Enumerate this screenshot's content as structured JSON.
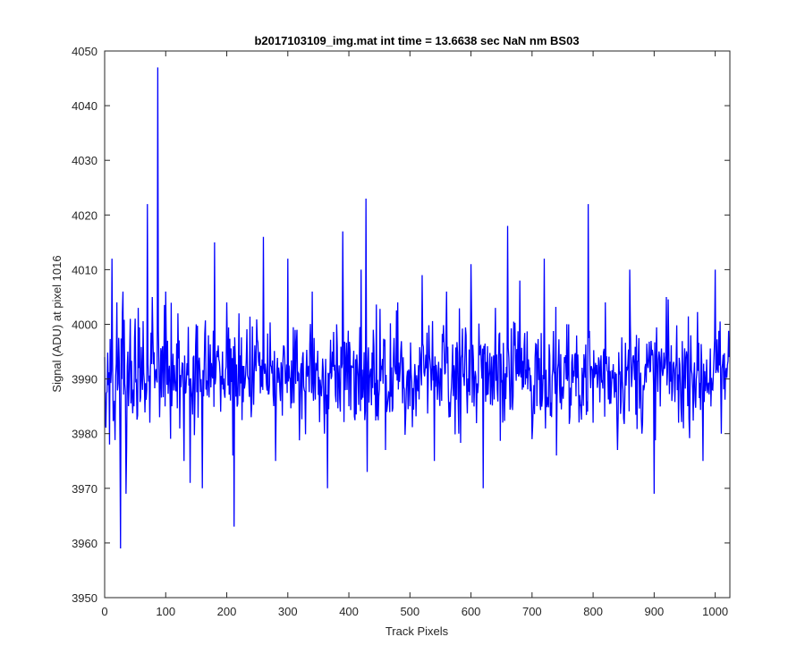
{
  "chart_data": {
    "type": "line",
    "title": "b2017103109_img.mat int time = 13.6638 sec  NaN nm BS03",
    "xlabel": "Track Pixels",
    "ylabel": "Signal (ADU) at pixel 1016",
    "xlim": [
      0,
      1024
    ],
    "ylim": [
      3950,
      4050
    ],
    "xticks": [
      0,
      100,
      200,
      300,
      400,
      500,
      600,
      700,
      800,
      900,
      1000
    ],
    "yticks": [
      3950,
      3960,
      3970,
      3980,
      3990,
      4000,
      4010,
      4020,
      4030,
      4040,
      4050
    ],
    "grid": false,
    "legend": "none",
    "series": [
      {
        "color": "#0000ff",
        "n_points": 1024,
        "base_level": 3991,
        "noise_amplitude": 8,
        "x": [
          0,
          8,
          12,
          15,
          20,
          26,
          30,
          35,
          38,
          42,
          48,
          55,
          62,
          70,
          74,
          78,
          83,
          87,
          90,
          95,
          100,
          110,
          120,
          130,
          140,
          150,
          160,
          170,
          180,
          190,
          200,
          210,
          212,
          220,
          240,
          260,
          280,
          300,
          320,
          340,
          360,
          365,
          380,
          390,
          400,
          420,
          428,
          430,
          440,
          460,
          480,
          500,
          520,
          540,
          560,
          580,
          600,
          620,
          640,
          660,
          665,
          680,
          700,
          720,
          740,
          760,
          780,
          792,
          800,
          820,
          840,
          860,
          880,
          900,
          920,
          940,
          960,
          980,
          1000,
          1010,
          1023
        ],
        "y": [
          3994,
          3978,
          4012,
          3983,
          4004,
          3959,
          4006,
          3969,
          3995,
          4001,
          3985,
          4003,
          3988,
          4022,
          3982,
          4005,
          3991,
          4047,
          3983,
          3996,
          4006,
          3985,
          4002,
          3975,
          3971,
          4000,
          3970,
          3998,
          4015,
          3984,
          4004,
          3976,
          3963,
          4002,
          3983,
          4016,
          3975,
          4012,
          3986,
          4006,
          3980,
          3970,
          4000,
          4017,
          3985,
          4010,
          4023,
          3973,
          3999,
          3977,
          4004,
          3985,
          4009,
          3975,
          4006,
          3980,
          4011,
          3970,
          4003,
          4018,
          3985,
          4008,
          3979,
          4012,
          3976,
          4000,
          3985,
          4022,
          3982,
          4004,
          3977,
          4010,
          3980,
          3969,
          4005,
          3982,
          3998,
          3975,
          4010,
          3980,
          3994
        ]
      }
    ]
  }
}
